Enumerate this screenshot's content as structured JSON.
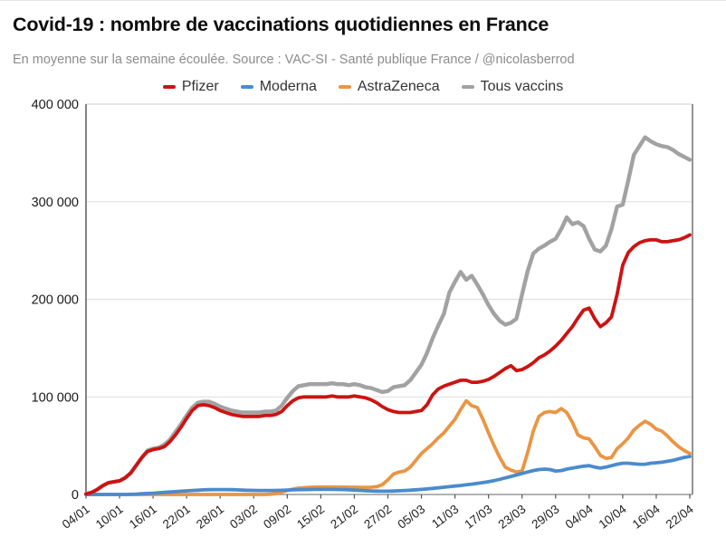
{
  "page": {
    "title": "Covid-19 : nombre de vaccinations quotidiennes en France",
    "subtitle": "En moyenne sur la semaine écoulée. Source : VAC-SI - Santé publique France / @nicolasberrod"
  },
  "colors": {
    "pfizer": "#cd1212",
    "moderna": "#4a8bcd",
    "astrazeneca": "#ea9544",
    "tous_vaccins": "#a2a2a2",
    "grid": "#dddddd",
    "axis_dark": "#666666",
    "frame_top": "#cccccc",
    "frame_bottom": "#999999",
    "tick": "#555555",
    "tick_label": "#1a1a1a"
  },
  "chart_data": {
    "type": "line",
    "title": "Covid-19 : nombre de vaccinations quotidiennes en France",
    "subtitle": "En moyenne sur la semaine écoulée. Source : VAC-SI - Santé publique France / @nicolasberrod",
    "frequency": "daily",
    "x_start": "04/01",
    "x_end": "22/04",
    "x_tick_labels": [
      "04/01",
      "10/01",
      "16/01",
      "22/01",
      "28/01",
      "03/02",
      "09/02",
      "15/02",
      "21/02",
      "27/02",
      "05/03",
      "11/03",
      "17/03",
      "23/03",
      "29/03",
      "04/04",
      "10/04",
      "16/04",
      "22/04"
    ],
    "x_tick_every_days": 6,
    "ylim": [
      0,
      400000
    ],
    "y_tick_values": [
      0,
      100000,
      200000,
      300000,
      400000
    ],
    "y_tick_labels": [
      "0",
      "100 000",
      "200 000",
      "300 000",
      "400 000"
    ],
    "grid": "horizontal",
    "legend_position": "top",
    "series": [
      {
        "name": "Pfizer",
        "key": "pfizer",
        "color": "#cd1212",
        "values": [
          500,
          2000,
          5000,
          9000,
          12000,
          13000,
          14000,
          17000,
          22000,
          30000,
          38000,
          44000,
          46000,
          47000,
          49000,
          54000,
          61000,
          69000,
          78000,
          86000,
          91000,
          92000,
          91000,
          89000,
          86000,
          84000,
          82000,
          81000,
          80000,
          80000,
          80000,
          80000,
          81000,
          81000,
          82000,
          85000,
          91000,
          96000,
          99000,
          100000,
          100000,
          100000,
          100000,
          100000,
          101000,
          100000,
          100000,
          100000,
          101000,
          100000,
          99000,
          97000,
          94000,
          90000,
          87000,
          85000,
          84000,
          84000,
          84000,
          85000,
          86000,
          92000,
          102000,
          108000,
          111000,
          113000,
          115000,
          117000,
          117000,
          115000,
          115000,
          116000,
          118000,
          121000,
          125000,
          129000,
          132000,
          127000,
          128000,
          131000,
          135000,
          140000,
          143000,
          147000,
          152000,
          158000,
          165000,
          172000,
          181000,
          189000,
          191000,
          180000,
          172000,
          176000,
          182000,
          205000,
          235000,
          248000,
          254000,
          258000,
          260000,
          261000,
          261000,
          259000,
          259000,
          260000,
          261000,
          263000,
          266000
        ]
      },
      {
        "name": "Moderna",
        "key": "moderna",
        "color": "#4a8bcd",
        "values": [
          0,
          0,
          0,
          0,
          0,
          0,
          0,
          0,
          200,
          400,
          700,
          1000,
          1300,
          1700,
          2100,
          2500,
          2900,
          3300,
          3700,
          4100,
          4400,
          4700,
          4900,
          5000,
          5000,
          5000,
          4900,
          4700,
          4500,
          4300,
          4200,
          4100,
          4100,
          4100,
          4200,
          4300,
          4500,
          4700,
          4900,
          5000,
          5100,
          5200,
          5200,
          5200,
          5200,
          5100,
          5000,
          4800,
          4500,
          4200,
          3900,
          3600,
          3400,
          3300,
          3300,
          3500,
          3800,
          4100,
          4400,
          4800,
          5200,
          5700,
          6200,
          6800,
          7400,
          8000,
          8600,
          9200,
          9900,
          10600,
          11400,
          12200,
          13100,
          14200,
          15500,
          17000,
          18500,
          20000,
          21500,
          23000,
          24500,
          25500,
          26000,
          25500,
          24000,
          24500,
          26000,
          27000,
          28000,
          29000,
          29500,
          28000,
          27000,
          28000,
          29500,
          31000,
          32000,
          32000,
          31500,
          31000,
          31000,
          32000,
          32500,
          33000,
          34000,
          35000,
          36500,
          38000,
          39000
        ]
      },
      {
        "name": "AstraZeneca",
        "key": "astrazeneca",
        "color": "#ea9544",
        "values": [
          0,
          0,
          0,
          0,
          0,
          0,
          0,
          0,
          0,
          0,
          0,
          0,
          0,
          0,
          0,
          0,
          0,
          0,
          0,
          0,
          0,
          0,
          0,
          0,
          0,
          0,
          0,
          0,
          0,
          0,
          0,
          0,
          0,
          300,
          1000,
          2500,
          4000,
          5500,
          6500,
          7000,
          7300,
          7500,
          7600,
          7600,
          7600,
          7500,
          7500,
          7400,
          7400,
          7300,
          7300,
          7400,
          8000,
          10000,
          15000,
          21000,
          23000,
          24000,
          28000,
          35000,
          42000,
          47000,
          52000,
          58000,
          63000,
          70000,
          77000,
          87000,
          96000,
          91000,
          89000,
          77000,
          63000,
          50000,
          38000,
          28000,
          25000,
          23000,
          24000,
          43000,
          65000,
          80000,
          84000,
          85000,
          84000,
          88000,
          84000,
          74000,
          61000,
          58000,
          57000,
          49000,
          40000,
          37000,
          38000,
          47000,
          52000,
          58000,
          66000,
          71000,
          75000,
          72000,
          67000,
          65000,
          60000,
          54000,
          49000,
          45000,
          42000
        ]
      },
      {
        "name": "Tous vaccins",
        "key": "tous-vaccins",
        "color": "#a2a2a2",
        "values": [
          500,
          2000,
          5000,
          9000,
          12000,
          13000,
          14000,
          17000,
          22000,
          30000,
          38000,
          45000,
          47000,
          48000,
          51000,
          56000,
          64000,
          72000,
          81000,
          89000,
          94000,
          95000,
          95000,
          93000,
          90000,
          88000,
          86000,
          85000,
          84000,
          84000,
          84000,
          84000,
          85000,
          85000,
          86000,
          91000,
          99000,
          106000,
          111000,
          112000,
          113000,
          113000,
          113000,
          113000,
          114000,
          113000,
          113000,
          112000,
          113000,
          112000,
          110000,
          109000,
          107000,
          105000,
          106000,
          110000,
          111000,
          112000,
          117000,
          125000,
          133000,
          145000,
          160000,
          173000,
          185000,
          207000,
          218000,
          228000,
          220000,
          224000,
          215000,
          205000,
          194000,
          185000,
          178000,
          174000,
          176000,
          180000,
          205000,
          229000,
          247000,
          252000,
          255000,
          259000,
          262000,
          272000,
          284000,
          277000,
          279000,
          275000,
          262000,
          251000,
          249000,
          255000,
          272000,
          295000,
          297000,
          322000,
          348000,
          357000,
          366000,
          362000,
          359000,
          357000,
          356000,
          353000,
          349000,
          346000,
          343000
        ]
      }
    ]
  }
}
